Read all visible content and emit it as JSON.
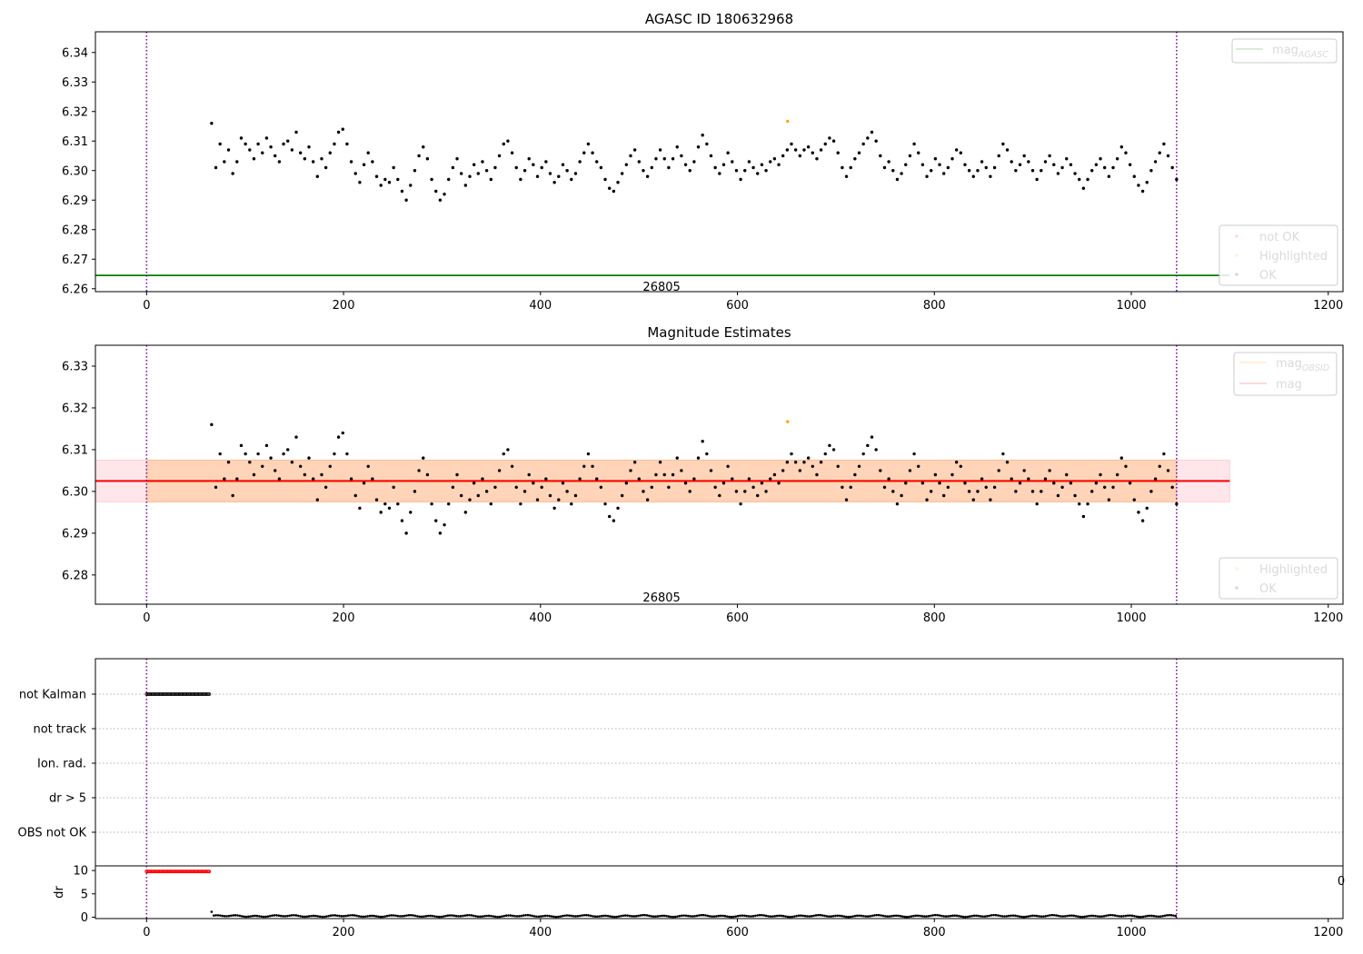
{
  "chart_data": [
    {
      "type": "scatter",
      "title": "AGASC ID 180632968",
      "xlim": [
        -52,
        1215
      ],
      "ylim": [
        6.259,
        6.347
      ],
      "x_ticks": [
        0,
        200,
        400,
        600,
        800,
        1000,
        1200
      ],
      "y_ticks": [
        6.26,
        6.27,
        6.28,
        6.29,
        6.3,
        6.31,
        6.32,
        6.33,
        6.34
      ],
      "y_tick_format": 2,
      "vlines": [
        0,
        1046
      ],
      "annotation": {
        "text": "26805",
        "x": 523,
        "y": 6.2605
      },
      "hlines": [
        {
          "name": "mag_AGASC",
          "y": 6.2645,
          "x_end": 1100,
          "color": "#008000"
        }
      ],
      "series": [
        {
          "name": "not OK",
          "color": "#ff0000",
          "points": []
        },
        {
          "name": "Highlighted",
          "color": "#ffa500",
          "points": [
            [
              651,
              6.3167
            ]
          ]
        },
        {
          "name": "OK",
          "color": "#000000",
          "range": [
            66,
            1046
          ],
          "values": [
            6.316,
            6.301,
            6.309,
            6.303,
            6.307,
            6.299,
            6.303,
            6.311,
            6.309,
            6.307,
            6.304,
            6.309,
            6.306,
            6.311,
            6.308,
            6.305,
            6.303,
            6.309,
            6.31,
            6.307,
            6.313,
            6.306,
            6.304,
            6.308,
            6.303,
            6.298,
            6.304,
            6.301,
            6.306,
            6.309,
            6.313,
            6.314,
            6.309,
            6.303,
            6.299,
            6.296,
            6.302,
            6.306,
            6.303,
            6.298,
            6.295,
            6.297,
            6.296,
            6.301,
            6.297,
            6.293,
            6.29,
            6.295,
            6.3,
            6.305,
            6.308,
            6.304,
            6.297,
            6.293,
            6.29,
            6.292,
            6.297,
            6.301,
            6.304,
            6.299,
            6.295,
            6.298,
            6.302,
            6.299,
            6.303,
            6.3,
            6.297,
            6.301,
            6.305,
            6.309,
            6.31,
            6.306,
            6.301,
            6.297,
            6.3,
            6.304,
            6.302,
            6.298,
            6.301,
            6.303,
            6.299,
            6.296,
            6.298,
            6.302,
            6.3,
            6.297,
            6.299,
            6.303,
            6.306,
            6.309,
            6.306,
            6.303,
            6.301,
            6.297,
            6.294,
            6.293,
            6.296,
            6.299,
            6.302,
            6.305,
            6.307,
            6.303,
            6.3,
            6.298,
            6.301,
            6.304,
            6.307,
            6.304,
            6.301,
            6.304,
            6.308,
            6.305,
            6.302,
            6.3,
            6.303,
            6.308,
            6.312,
            6.309,
            6.305,
            6.301,
            6.299,
            6.302,
            6.306,
            6.303,
            6.3,
            6.297,
            6.3,
            6.303,
            6.301,
            6.299,
            6.302,
            6.3,
            6.303,
            6.304,
            6.302,
            6.305,
            6.307,
            6.309,
            6.307,
            6.305,
            6.307,
            6.308,
            6.306,
            6.304,
            6.307,
            6.309,
            6.311,
            6.31,
            6.306,
            6.301,
            6.298,
            6.301,
            6.304,
            6.306,
            6.309,
            6.311,
            6.313,
            6.31,
            6.305,
            6.301,
            6.303,
            6.3,
            6.297,
            6.299,
            6.302,
            6.305,
            6.309,
            6.306,
            6.302,
            6.298,
            6.3,
            6.304,
            6.302,
            6.299,
            6.301,
            6.304,
            6.307,
            6.306,
            6.302,
            6.3,
            6.298,
            6.3,
            6.303,
            6.301,
            6.298,
            6.301,
            6.305,
            6.309,
            6.307,
            6.303,
            6.3,
            6.302,
            6.305,
            6.303,
            6.3,
            6.297,
            6.3,
            6.303,
            6.305,
            6.302,
            6.299,
            6.301,
            6.304,
            6.302,
            6.299,
            6.297,
            6.294,
            6.297,
            6.3,
            6.302,
            6.304,
            6.301,
            6.298,
            6.301,
            6.304,
            6.308,
            6.306,
            6.302,
            6.298,
            6.295,
            6.293,
            6.296,
            6.3,
            6.303,
            6.306,
            6.309,
            6.305,
            6.301,
            6.297
          ]
        }
      ]
    },
    {
      "type": "scatter",
      "title": "Magnitude Estimates",
      "xlim": [
        -52,
        1215
      ],
      "ylim": [
        6.273,
        6.335
      ],
      "x_ticks": [
        0,
        200,
        400,
        600,
        800,
        1000,
        1200
      ],
      "y_ticks": [
        6.28,
        6.29,
        6.3,
        6.31,
        6.32,
        6.33
      ],
      "y_tick_format": 2,
      "vlines": [
        0,
        1046
      ],
      "annotation": {
        "text": "26805",
        "x": 523,
        "y": 6.2745
      },
      "bands": [
        {
          "name": "mag_OBSID_band",
          "x": [
            0,
            1046
          ],
          "y": [
            6.2975,
            6.3075
          ],
          "color": "#ffa500",
          "opacity": 0.25
        },
        {
          "name": "mag_band",
          "x": [
            -52,
            1100
          ],
          "y": [
            6.2975,
            6.3075
          ],
          "color": "#ff8fa0",
          "opacity": 0.22
        }
      ],
      "hlines": [
        {
          "name": "mag_OBSID",
          "y": 6.3025,
          "x_start": 0,
          "x_end": 1046,
          "color": "#ffa500"
        },
        {
          "name": "mag",
          "y": 6.3025,
          "x_start": -52,
          "x_end": 1100,
          "color": "#ff0000"
        }
      ],
      "series": [
        {
          "name": "Highlighted",
          "color": "#ffa500",
          "points": [
            [
              651,
              6.3167
            ]
          ]
        },
        {
          "name": "OK",
          "color": "#000000",
          "same_as": "AGASC ID 180632968"
        }
      ]
    },
    {
      "type": "scatter",
      "title": "",
      "xlim": [
        -52,
        1215
      ],
      "categories": [
        "not Kalman",
        "not track",
        "Ion. rad.",
        "dr > 5",
        "OBS not OK"
      ],
      "vlines": [
        0,
        1046
      ],
      "series": [
        {
          "name": "not Kalman",
          "color": "#000000",
          "x_range": [
            0,
            64
          ]
        }
      ]
    },
    {
      "type": "scatter",
      "title": "",
      "xlim": [
        -52,
        1215
      ],
      "ylim": [
        -0.3,
        11
      ],
      "x_ticks": [
        0,
        200,
        400,
        600,
        800,
        1000,
        1200
      ],
      "y_ticks": [
        0,
        5,
        10
      ],
      "ylabel": "dr",
      "vlines": [
        0,
        1046
      ],
      "series": [
        {
          "name": "dr capped",
          "color": "#ff0000",
          "x_range": [
            0,
            64
          ],
          "y": 9.8
        },
        {
          "name": "dr",
          "color": "#000000",
          "x_range": [
            66,
            1046
          ],
          "y_base": 0.25
        }
      ]
    }
  ],
  "legends": {
    "top": [
      {
        "label": "mag",
        "sub": "AGASC",
        "color": "#008000"
      }
    ],
    "top_points": [
      {
        "label": "not OK",
        "color": "#ff0000"
      },
      {
        "label": "Highlighted",
        "color": "#ffa500"
      },
      {
        "label": "OK",
        "color": "#000000"
      }
    ],
    "mid": [
      {
        "label": "mag",
        "sub": "OBSID",
        "color": "#ffa500"
      },
      {
        "label": "mag",
        "sub": "",
        "color": "#ff0000"
      }
    ],
    "mid_points": [
      {
        "label": "Highlighted",
        "color": "#ffa500"
      },
      {
        "label": "OK",
        "color": "#000000"
      }
    ]
  },
  "stray_tick_label": "0"
}
